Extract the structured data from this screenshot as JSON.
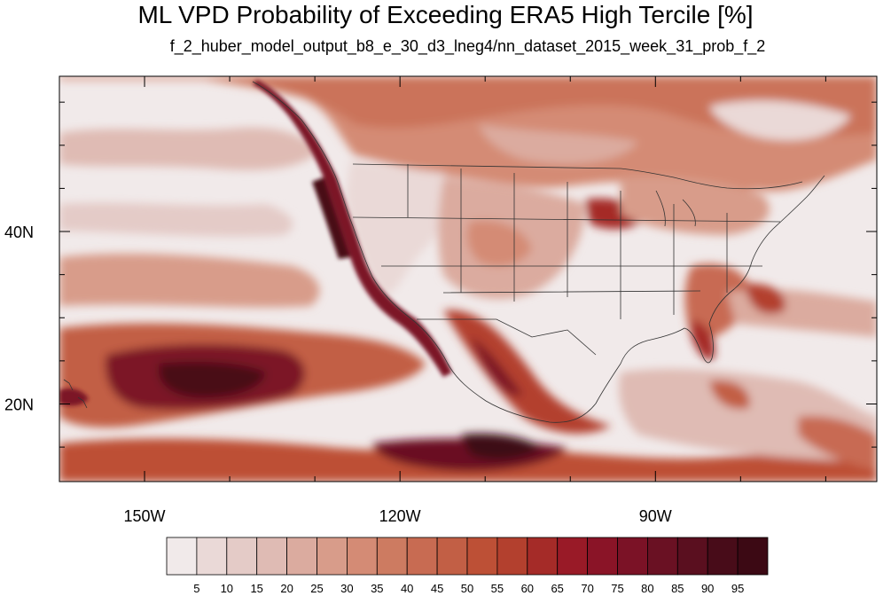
{
  "title": "ML VPD Probability of Exceeding ERA5 High Tercile [%]",
  "subtitle": "f_2_huber_model_output_b8_e_30_d3_lneg4/nn_dataset_2015_week_31_prob_f_2",
  "map": {
    "lon_range": [
      -160,
      -64
    ],
    "lat_range": [
      11,
      58
    ],
    "lon_ticks": [
      {
        "value": -150,
        "label": "150W"
      },
      {
        "value": -120,
        "label": "120W"
      },
      {
        "value": -90,
        "label": "90W"
      }
    ],
    "lat_ticks": [
      {
        "value": 20,
        "label": "20N"
      },
      {
        "value": 40,
        "label": "40N"
      }
    ]
  },
  "colorbar": {
    "levels": [
      "5",
      "10",
      "15",
      "20",
      "25",
      "30",
      "35",
      "40",
      "45",
      "50",
      "55",
      "60",
      "65",
      "70",
      "75",
      "80",
      "85",
      "90",
      "95"
    ],
    "colors": [
      "#f1eaea",
      "#ead9d7",
      "#e4cbc7",
      "#dfbbb4",
      "#dbab9f",
      "#d89c8a",
      "#d48b75",
      "#cd7b61",
      "#c86b52",
      "#c25f45",
      "#bd5036",
      "#b3402e",
      "#a52b28",
      "#991a27",
      "#8a1427",
      "#7b1226",
      "#6a1123",
      "#5a0f1f",
      "#480c19",
      "#3c0914"
    ]
  }
}
